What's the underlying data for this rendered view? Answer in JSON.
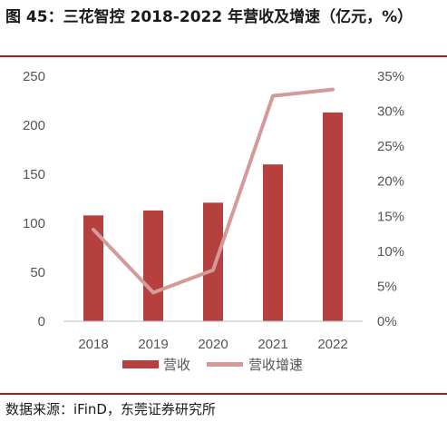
{
  "title": "图 45：三花智控 2018-2022 年营收及增速（亿元，%）",
  "source": "数据来源：iFinD，东莞证券研究所",
  "colors": {
    "bar": "#b5403e",
    "line": "#d39a97",
    "rule": "#b01c1c"
  },
  "chart_data": {
    "type": "bar",
    "categories": [
      "2018",
      "2019",
      "2020",
      "2021",
      "2022"
    ],
    "series": [
      {
        "name": "营收",
        "type": "bar",
        "axis": "left",
        "values": [
          108,
          113,
          121,
          160,
          213
        ]
      },
      {
        "name": "营收增速",
        "type": "line",
        "axis": "right",
        "values": [
          13.1,
          4.1,
          7.3,
          32.2,
          33.1
        ]
      }
    ],
    "y_left": {
      "range": [
        0,
        250
      ],
      "ticks": [
        0,
        50,
        100,
        150,
        200,
        250
      ]
    },
    "y_right": {
      "range": [
        0,
        35
      ],
      "ticks": [
        "0%",
        "5%",
        "10%",
        "15%",
        "20%",
        "25%",
        "30%",
        "35%"
      ],
      "tick_values": [
        0,
        5,
        10,
        15,
        20,
        25,
        30,
        35
      ]
    },
    "legend": "bottom",
    "grid": false
  }
}
